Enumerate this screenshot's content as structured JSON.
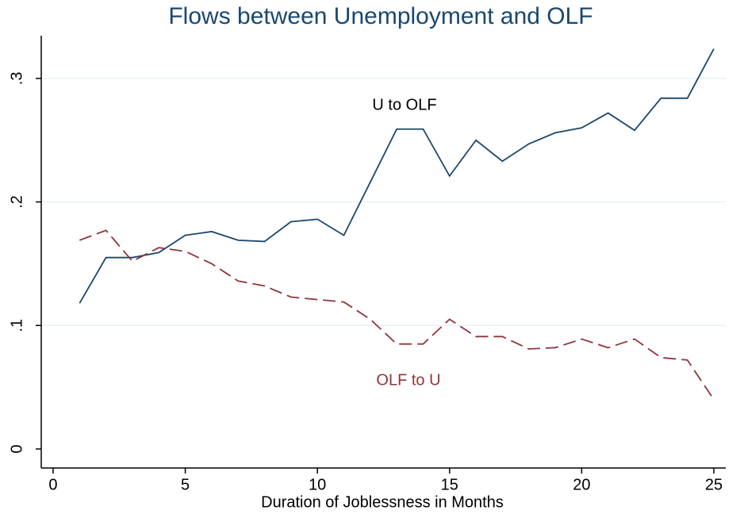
{
  "chart_data": {
    "type": "line",
    "title": "Flows between Unemployment and OLF",
    "x_label": "Duration of Joblessness in Months",
    "x": [
      1,
      2,
      3,
      4,
      5,
      6,
      7,
      8,
      9,
      10,
      11,
      12,
      13,
      14,
      15,
      16,
      17,
      18,
      19,
      20,
      21,
      22,
      23,
      24,
      25
    ],
    "series": [
      {
        "name": "U to OLF",
        "color": "#1a476f",
        "line_style": "solid",
        "values": [
          0.118,
          0.155,
          0.155,
          0.159,
          0.173,
          0.176,
          0.169,
          0.168,
          0.184,
          0.186,
          0.173,
          0.216,
          0.259,
          0.259,
          0.221,
          0.25,
          0.233,
          0.247,
          0.256,
          0.26,
          0.272,
          0.258,
          0.284,
          0.284,
          0.324
        ]
      },
      {
        "name": "OLF to U",
        "color": "#90353b",
        "line_style": "dashed",
        "values": [
          0.169,
          0.177,
          0.152,
          0.163,
          0.16,
          0.15,
          0.136,
          0.132,
          0.123,
          0.121,
          0.119,
          0.105,
          0.085,
          0.085,
          0.105,
          0.091,
          0.091,
          0.081,
          0.082,
          0.089,
          0.082,
          0.089,
          0.074,
          0.072,
          0.04
        ]
      }
    ],
    "xlim": [
      -0.45,
      25.45
    ],
    "xticks": [
      0,
      5,
      10,
      15,
      20,
      25
    ],
    "ylim": [
      -0.0154,
      0.3346
    ],
    "yticks": [
      0,
      {
        "value": 0.1,
        "label": ".1"
      },
      {
        "value": 0.2,
        "label": ".2"
      },
      {
        "value": 0.3,
        "label": ".3"
      }
    ],
    "grid": true,
    "legend": "none"
  }
}
